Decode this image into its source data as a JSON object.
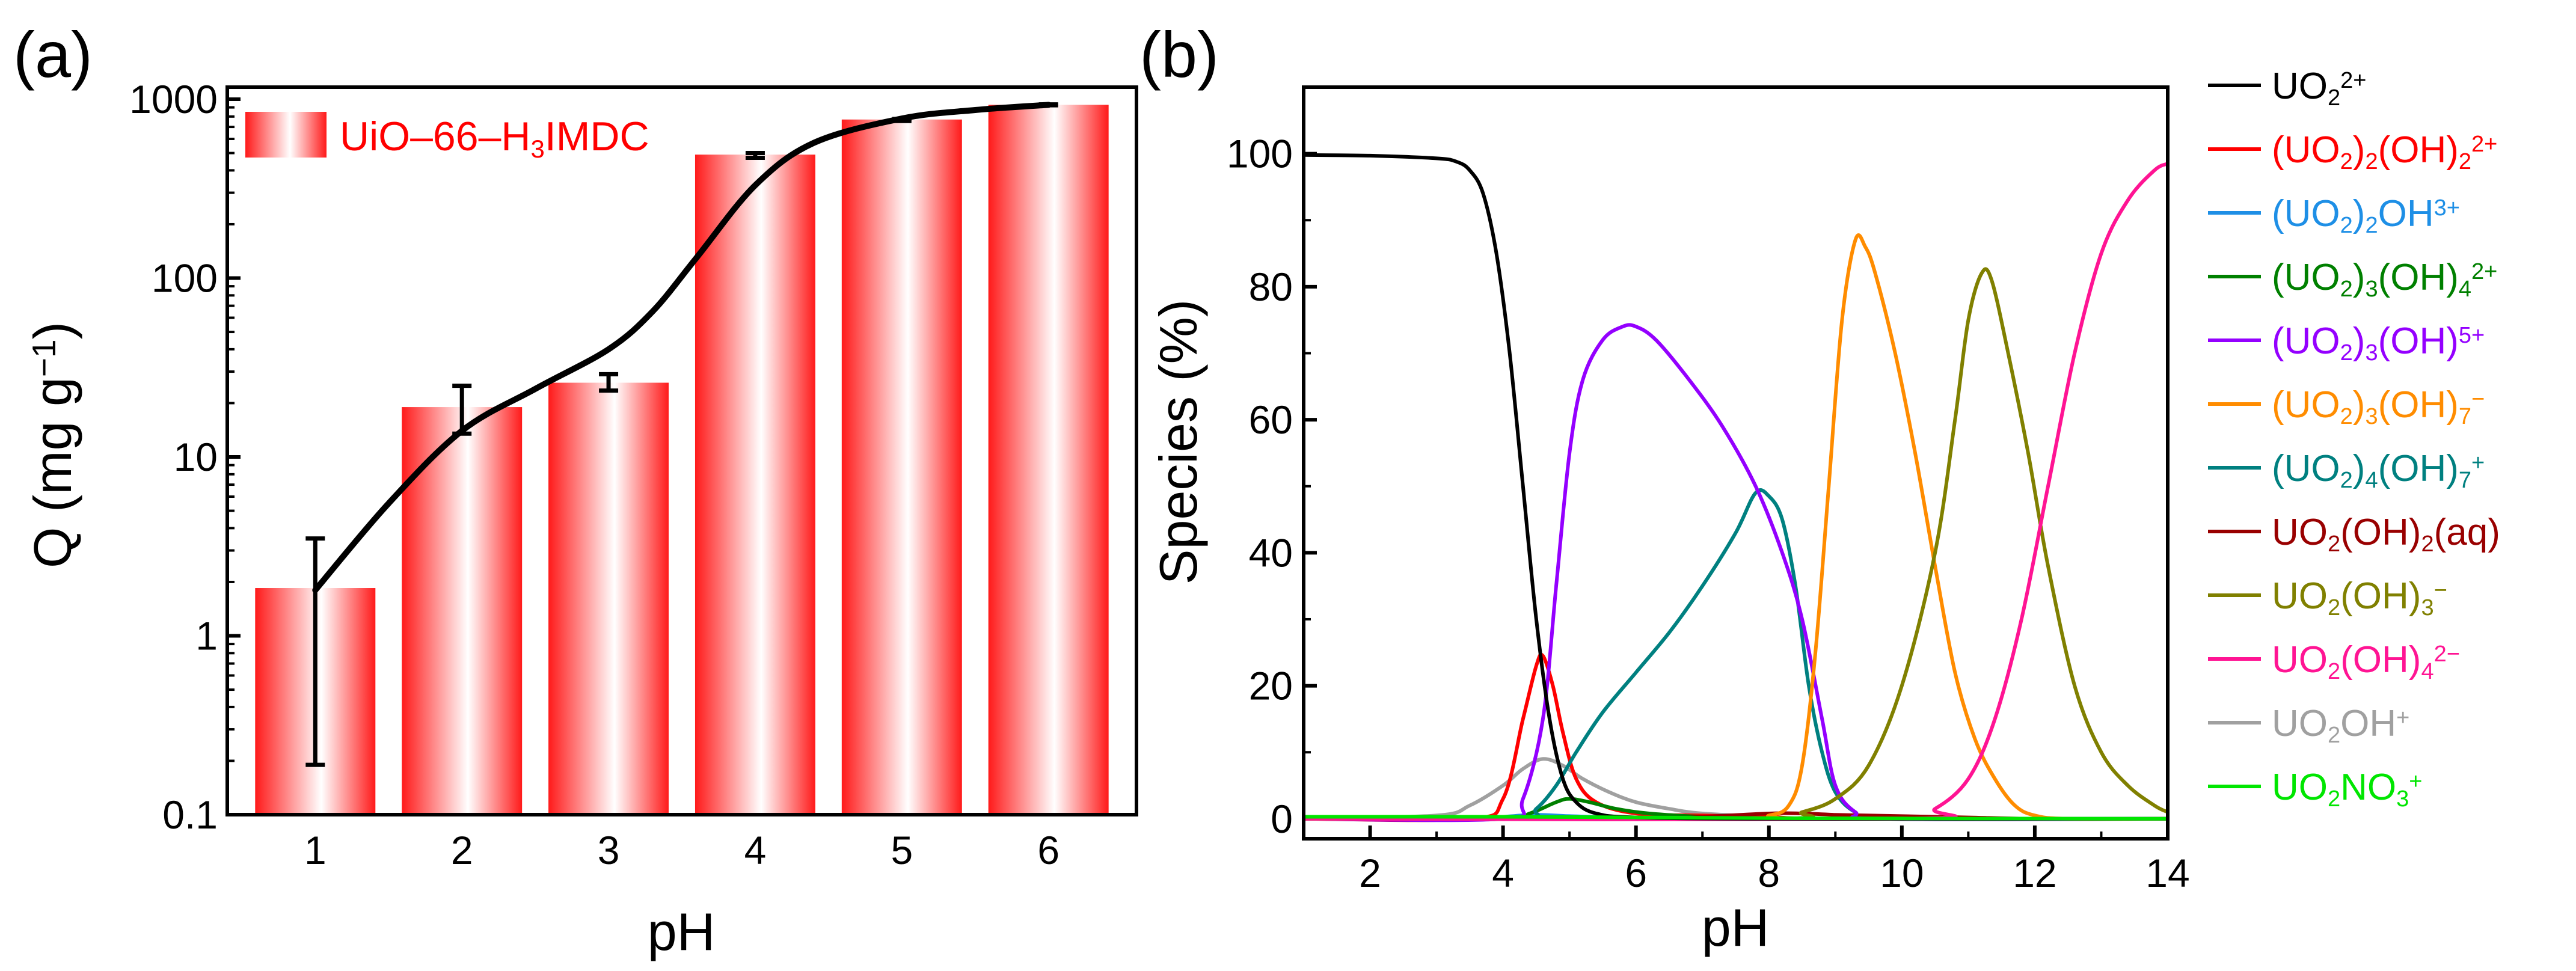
{
  "chart_data": [
    {
      "panel_label": "(a)",
      "type": "bar",
      "categories": [
        "1",
        "2",
        "3",
        "4",
        "5",
        "6"
      ],
      "values": [
        1.85,
        19,
        26,
        490,
        770,
        930
      ],
      "error_bars": [
        [
          0.19,
          3.5
        ],
        [
          13.5,
          25
        ],
        [
          23.5,
          29
        ],
        [
          470,
          500
        ],
        [
          755,
          775
        ],
        [
          925,
          935
        ]
      ],
      "fit_curve": {
        "x": [
          1.0,
          1.5,
          2.0,
          2.5,
          3.0,
          3.3,
          3.6,
          4.0,
          4.4,
          5.0,
          5.5,
          6.0
        ],
        "y": [
          1.8,
          5.5,
          14,
          24,
          40,
          65,
          130,
          330,
          570,
          780,
          870,
          930
        ]
      },
      "legend": "UiO–66–H₃IMDC",
      "xlabel": "pH",
      "ylabel": "Q (mg g⁻¹)",
      "yscale": "log",
      "ylim": [
        0.1,
        1000
      ],
      "xlim": [
        0.4,
        6.6
      ],
      "y_ticks": [
        "0.1",
        "1",
        "10",
        "100",
        "1000"
      ],
      "x_ticks": [
        "1",
        "2",
        "3",
        "4",
        "5",
        "6"
      ],
      "colors": {
        "bar": "#ff1a1a",
        "curve": "#000000",
        "legend_text": "#ff0000"
      }
    },
    {
      "panel_label": "(b)",
      "type": "line",
      "xlabel": "pH",
      "ylabel": "Species (%)",
      "xlim": [
        1,
        14
      ],
      "ylim": [
        -3,
        110
      ],
      "x_ticks": [
        "2",
        "4",
        "6",
        "8",
        "10",
        "12",
        "14"
      ],
      "y_ticks": [
        "0",
        "20",
        "40",
        "60",
        "80",
        "100"
      ],
      "series": [
        {
          "name": "UO₂²⁺",
          "color": "#000000",
          "points": [
            [
              1,
              99.8
            ],
            [
              2,
              99.7
            ],
            [
              3,
              99.3
            ],
            [
              3.3,
              98.8
            ],
            [
              3.5,
              97.5
            ],
            [
              3.7,
              94
            ],
            [
              3.9,
              85
            ],
            [
              4.1,
              70
            ],
            [
              4.3,
              50
            ],
            [
              4.5,
              30
            ],
            [
              4.7,
              15
            ],
            [
              4.9,
              6
            ],
            [
              5.1,
              2.5
            ],
            [
              5.4,
              0.8
            ],
            [
              6,
              0.2
            ],
            [
              8,
              0
            ],
            [
              14,
              0
            ]
          ]
        },
        {
          "name": "(UO₂)₂(OH)₂²⁺",
          "color": "#ff0000",
          "points": [
            [
              1,
              0
            ],
            [
              3.5,
              0
            ],
            [
              4.0,
              3
            ],
            [
              4.3,
              15
            ],
            [
              4.5,
              23
            ],
            [
              4.6,
              24.5
            ],
            [
              4.75,
              20
            ],
            [
              4.9,
              13
            ],
            [
              5.1,
              6
            ],
            [
              5.4,
              2.5
            ],
            [
              6,
              0.8
            ],
            [
              7,
              0.5
            ],
            [
              8,
              0.3
            ],
            [
              9,
              0
            ],
            [
              14,
              0
            ]
          ]
        },
        {
          "name": "(UO₂)₂OH³⁺",
          "color": "#1e8fe6",
          "points": [
            [
              1,
              0
            ],
            [
              3.5,
              0
            ],
            [
              4.0,
              0.3
            ],
            [
              4.5,
              0.6
            ],
            [
              5,
              0.4
            ],
            [
              6,
              0.1
            ],
            [
              7,
              0
            ],
            [
              14,
              0
            ]
          ]
        },
        {
          "name": "(UO₂)₃(OH)₄²⁺",
          "color": "#008000",
          "points": [
            [
              1,
              0
            ],
            [
              4.0,
              0
            ],
            [
              4.4,
              0.8
            ],
            [
              4.8,
              2.5
            ],
            [
              5.0,
              3
            ],
            [
              5.3,
              2.5
            ],
            [
              5.7,
              1.5
            ],
            [
              6.2,
              0.8
            ],
            [
              7,
              0.3
            ],
            [
              8,
              0
            ],
            [
              14,
              0
            ]
          ]
        },
        {
          "name": "(UO₂)₃(OH)⁵⁺",
          "color": "#9400ff",
          "points": [
            [
              1,
              0
            ],
            [
              4.0,
              0
            ],
            [
              4.3,
              3
            ],
            [
              4.6,
              15
            ],
            [
              4.8,
              35
            ],
            [
              5.0,
              55
            ],
            [
              5.2,
              66
            ],
            [
              5.5,
              72
            ],
            [
              5.8,
              74
            ],
            [
              6.0,
              74
            ],
            [
              6.3,
              72
            ],
            [
              6.8,
              66
            ],
            [
              7.3,
              59
            ],
            [
              7.8,
              50
            ],
            [
              8.2,
              40
            ],
            [
              8.5,
              30
            ],
            [
              8.8,
              15
            ],
            [
              9.0,
              5
            ],
            [
              9.3,
              1
            ],
            [
              9.7,
              0
            ],
            [
              14,
              0
            ]
          ]
        },
        {
          "name": "(UO₂)₃(OH)₇⁻",
          "color": "#ff8c00",
          "points": [
            [
              1,
              0
            ],
            [
              7.5,
              0
            ],
            [
              8.0,
              0.5
            ],
            [
              8.3,
              2
            ],
            [
              8.5,
              8
            ],
            [
              8.7,
              25
            ],
            [
              8.9,
              50
            ],
            [
              9.1,
              75
            ],
            [
              9.3,
              87
            ],
            [
              9.45,
              86
            ],
            [
              9.6,
              82
            ],
            [
              9.9,
              70
            ],
            [
              10.2,
              55
            ],
            [
              10.5,
              38
            ],
            [
              10.8,
              22
            ],
            [
              11.1,
              12
            ],
            [
              11.4,
              6
            ],
            [
              11.7,
              2
            ],
            [
              12,
              0.5
            ],
            [
              12.5,
              0
            ],
            [
              14,
              0
            ]
          ]
        },
        {
          "name": "(UO₂)₄(OH)₇⁺",
          "color": "#008080",
          "points": [
            [
              1,
              0
            ],
            [
              4.2,
              0
            ],
            [
              4.5,
              1.5
            ],
            [
              4.8,
              5
            ],
            [
              5.1,
              10
            ],
            [
              5.5,
              16
            ],
            [
              6.0,
              22
            ],
            [
              6.5,
              28
            ],
            [
              7.0,
              35
            ],
            [
              7.5,
              43
            ],
            [
              7.8,
              49
            ],
            [
              8.0,
              48.5
            ],
            [
              8.2,
              45
            ],
            [
              8.4,
              35
            ],
            [
              8.6,
              20
            ],
            [
              8.8,
              10
            ],
            [
              9.0,
              4
            ],
            [
              9.3,
              1
            ],
            [
              9.7,
              0
            ],
            [
              14,
              0
            ]
          ]
        },
        {
          "name": "UO₂(OH)₂(aq)",
          "color": "#990000",
          "points": [
            [
              1,
              0
            ],
            [
              6,
              0
            ],
            [
              7,
              0.3
            ],
            [
              8,
              0.8
            ],
            [
              8.5,
              0.8
            ],
            [
              9,
              0.6
            ],
            [
              10,
              0.4
            ],
            [
              11,
              0.2
            ],
            [
              12,
              0
            ],
            [
              14,
              0
            ]
          ]
        },
        {
          "name": "UO₂(OH)₃⁻",
          "color": "#808000",
          "points": [
            [
              1,
              0
            ],
            [
              8.0,
              0
            ],
            [
              8.5,
              1
            ],
            [
              9.0,
              3
            ],
            [
              9.5,
              8
            ],
            [
              10.0,
              20
            ],
            [
              10.5,
              40
            ],
            [
              10.8,
              60
            ],
            [
              11.0,
              75
            ],
            [
              11.2,
              82
            ],
            [
              11.35,
              81
            ],
            [
              11.6,
              70
            ],
            [
              11.9,
              55
            ],
            [
              12.2,
              38
            ],
            [
              12.6,
              20
            ],
            [
              13.0,
              10
            ],
            [
              13.4,
              5
            ],
            [
              13.8,
              2
            ],
            [
              14,
              1
            ]
          ]
        },
        {
          "name": "UO₂(OH)₄²⁻",
          "color": "#ff1493",
          "points": [
            [
              1,
              0
            ],
            [
              10.0,
              0
            ],
            [
              10.5,
              1.5
            ],
            [
              11.0,
              6
            ],
            [
              11.4,
              15
            ],
            [
              11.8,
              30
            ],
            [
              12.2,
              50
            ],
            [
              12.6,
              70
            ],
            [
              13.0,
              85
            ],
            [
              13.4,
              93
            ],
            [
              13.8,
              97.5
            ],
            [
              14,
              98.5
            ]
          ]
        },
        {
          "name": "UO₂OH⁺",
          "color": "#a0a0a0",
          "points": [
            [
              1,
              0
            ],
            [
              3.0,
              0.5
            ],
            [
              3.5,
              2
            ],
            [
              4.0,
              5
            ],
            [
              4.3,
              7.5
            ],
            [
              4.6,
              9
            ],
            [
              4.9,
              8
            ],
            [
              5.2,
              6
            ],
            [
              5.6,
              4
            ],
            [
              6.0,
              2.5
            ],
            [
              6.5,
              1.5
            ],
            [
              7,
              0.8
            ],
            [
              8,
              0.3
            ],
            [
              9,
              0
            ],
            [
              14,
              0
            ]
          ]
        },
        {
          "name": "UO₂NO₃⁺",
          "color": "#00e600",
          "points": [
            [
              1,
              0.3
            ],
            [
              4,
              0.3
            ],
            [
              6,
              0.2
            ],
            [
              8,
              0.1
            ],
            [
              10,
              0.05
            ],
            [
              14,
              0
            ]
          ]
        }
      ]
    }
  ]
}
